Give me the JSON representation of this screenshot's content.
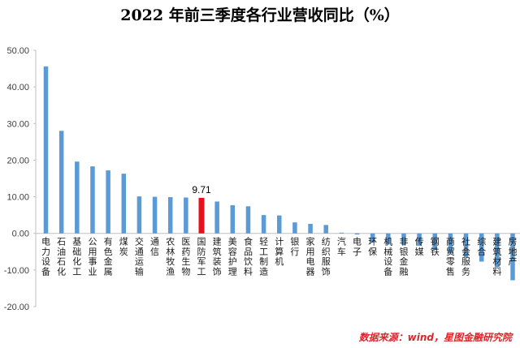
{
  "chart_data": {
    "type": "bar",
    "title": "2022 年前三季度各行业营收同比（%）",
    "xlabel": "",
    "ylabel": "",
    "ylim": [
      -20,
      50
    ],
    "yticks": [
      "-20.00",
      "-10.00",
      "0.00",
      "10.00",
      "20.00",
      "30.00",
      "40.00",
      "50.00"
    ],
    "grid": false,
    "categories": [
      "电力设备",
      "石油石化",
      "基础化工",
      "公用事业",
      "有色金属",
      "煤炭",
      "交通运输",
      "通信",
      "农林牧渔",
      "医药生物",
      "国防军工",
      "建筑装饰",
      "美容护理",
      "食品饮料",
      "轻工制造",
      "计算机",
      "银行",
      "家用电器",
      "纺织服饰",
      "汽车",
      "电子",
      "环保",
      "机械设备",
      "非银金融",
      "传媒",
      "钢铁",
      "商贸零售",
      "社会服务",
      "综合",
      "建筑材料",
      "房地产"
    ],
    "values": [
      45.6,
      28.0,
      19.6,
      18.3,
      17.2,
      16.3,
      10.1,
      10.0,
      9.9,
      9.8,
      9.71,
      8.7,
      7.7,
      7.4,
      5.0,
      4.9,
      3.0,
      2.6,
      2.3,
      0.2,
      -0.3,
      -2.5,
      -3.0,
      -3.2,
      -3.4,
      -4.5,
      -5.5,
      -6.5,
      -7.7,
      -9.3,
      -12.8
    ],
    "highlight_index": 10,
    "data_labels": [
      {
        "index": 10,
        "text": "9.71"
      }
    ],
    "colors": {
      "bar": "#5b9bd5",
      "highlight": "#e8101a",
      "axis": "#bfbfbf",
      "source_text": "#d9262b"
    }
  },
  "source": "数据来源：wind，星图金融研究院"
}
